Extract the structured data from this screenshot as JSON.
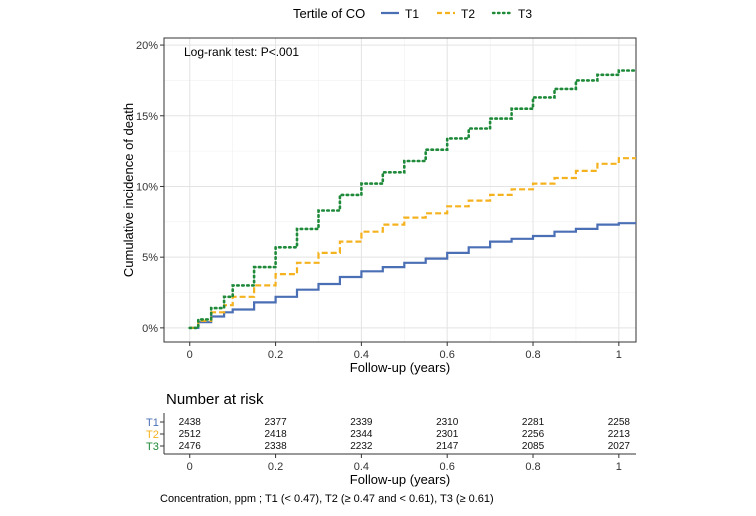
{
  "legend": {
    "title": "Tertile of CO",
    "items": [
      {
        "label": "T1",
        "color": "#4a6fb5",
        "dash": "solid"
      },
      {
        "label": "T2",
        "color": "#f5b21f",
        "dash": "dashed"
      },
      {
        "label": "T3",
        "color": "#1f8a3a",
        "dash": "dotted"
      }
    ]
  },
  "annotation": "Log-rank test: P<.001",
  "risk_table": {
    "title": "Number at risk",
    "rows": [
      {
        "label": "T1",
        "color": "#4a6fb5",
        "values": [
          2438,
          2377,
          2339,
          2310,
          2281,
          2258
        ]
      },
      {
        "label": "T2",
        "color": "#f5b21f",
        "values": [
          2512,
          2418,
          2344,
          2301,
          2256,
          2213
        ]
      },
      {
        "label": "T3",
        "color": "#1f8a3a",
        "values": [
          2476,
          2338,
          2232,
          2147,
          2085,
          2027
        ]
      }
    ],
    "xticks": [
      "0",
      "0.2",
      "0.4",
      "0.6",
      "0.8",
      "1"
    ],
    "xlabel": "Follow-up (years)"
  },
  "footnote": "Concentration, ppm ; T1 (< 0.47), T2 (≥ 0.47 and < 0.61), T3 (≥ 0.61)",
  "chart_data": {
    "type": "line",
    "step": true,
    "xlabel": "Follow-up (years)",
    "ylabel": "Cumulative incidence of death",
    "xlim": [
      -0.06,
      1.04
    ],
    "ylim": [
      -0.01,
      0.205
    ],
    "grid": true,
    "legend_position": "top",
    "xticks": [
      0,
      0.2,
      0.4,
      0.6,
      0.8,
      1
    ],
    "xtick_labels": [
      "0",
      "0.2",
      "0.4",
      "0.6",
      "0.8",
      "1"
    ],
    "yticks": [
      0,
      0.05,
      0.1,
      0.15,
      0.2
    ],
    "ytick_labels": [
      "0%",
      "5%",
      "10%",
      "15%",
      "20%"
    ],
    "series": [
      {
        "name": "T1",
        "color": "#4a6fb5",
        "dash": "solid",
        "points": [
          [
            0,
            0
          ],
          [
            0.02,
            0.004
          ],
          [
            0.05,
            0.008
          ],
          [
            0.08,
            0.011
          ],
          [
            0.1,
            0.013
          ],
          [
            0.15,
            0.018
          ],
          [
            0.2,
            0.022
          ],
          [
            0.25,
            0.027
          ],
          [
            0.3,
            0.031
          ],
          [
            0.35,
            0.036
          ],
          [
            0.4,
            0.04
          ],
          [
            0.45,
            0.043
          ],
          [
            0.5,
            0.046
          ],
          [
            0.55,
            0.049
          ],
          [
            0.6,
            0.053
          ],
          [
            0.65,
            0.057
          ],
          [
            0.7,
            0.061
          ],
          [
            0.75,
            0.063
          ],
          [
            0.8,
            0.065
          ],
          [
            0.85,
            0.068
          ],
          [
            0.9,
            0.07
          ],
          [
            0.95,
            0.073
          ],
          [
            1.0,
            0.074
          ],
          [
            1.04,
            0.074
          ]
        ]
      },
      {
        "name": "T2",
        "color": "#f5b21f",
        "dash": "dashed",
        "points": [
          [
            0,
            0
          ],
          [
            0.02,
            0.005
          ],
          [
            0.05,
            0.011
          ],
          [
            0.08,
            0.016
          ],
          [
            0.1,
            0.022
          ],
          [
            0.15,
            0.03
          ],
          [
            0.2,
            0.038
          ],
          [
            0.25,
            0.046
          ],
          [
            0.3,
            0.053
          ],
          [
            0.35,
            0.061
          ],
          [
            0.4,
            0.068
          ],
          [
            0.45,
            0.073
          ],
          [
            0.5,
            0.078
          ],
          [
            0.55,
            0.081
          ],
          [
            0.6,
            0.086
          ],
          [
            0.65,
            0.09
          ],
          [
            0.7,
            0.094
          ],
          [
            0.75,
            0.098
          ],
          [
            0.8,
            0.102
          ],
          [
            0.85,
            0.106
          ],
          [
            0.9,
            0.111
          ],
          [
            0.95,
            0.116
          ],
          [
            1.0,
            0.12
          ],
          [
            1.04,
            0.12
          ]
        ]
      },
      {
        "name": "T3",
        "color": "#1f8a3a",
        "dash": "dotted",
        "points": [
          [
            0,
            0
          ],
          [
            0.02,
            0.006
          ],
          [
            0.05,
            0.014
          ],
          [
            0.08,
            0.022
          ],
          [
            0.1,
            0.03
          ],
          [
            0.15,
            0.043
          ],
          [
            0.2,
            0.057
          ],
          [
            0.25,
            0.07
          ],
          [
            0.3,
            0.083
          ],
          [
            0.35,
            0.094
          ],
          [
            0.4,
            0.102
          ],
          [
            0.45,
            0.11
          ],
          [
            0.5,
            0.118
          ],
          [
            0.55,
            0.126
          ],
          [
            0.6,
            0.134
          ],
          [
            0.65,
            0.141
          ],
          [
            0.7,
            0.148
          ],
          [
            0.75,
            0.155
          ],
          [
            0.8,
            0.163
          ],
          [
            0.85,
            0.169
          ],
          [
            0.9,
            0.175
          ],
          [
            0.95,
            0.179
          ],
          [
            1.0,
            0.182
          ],
          [
            1.04,
            0.182
          ]
        ]
      }
    ]
  }
}
